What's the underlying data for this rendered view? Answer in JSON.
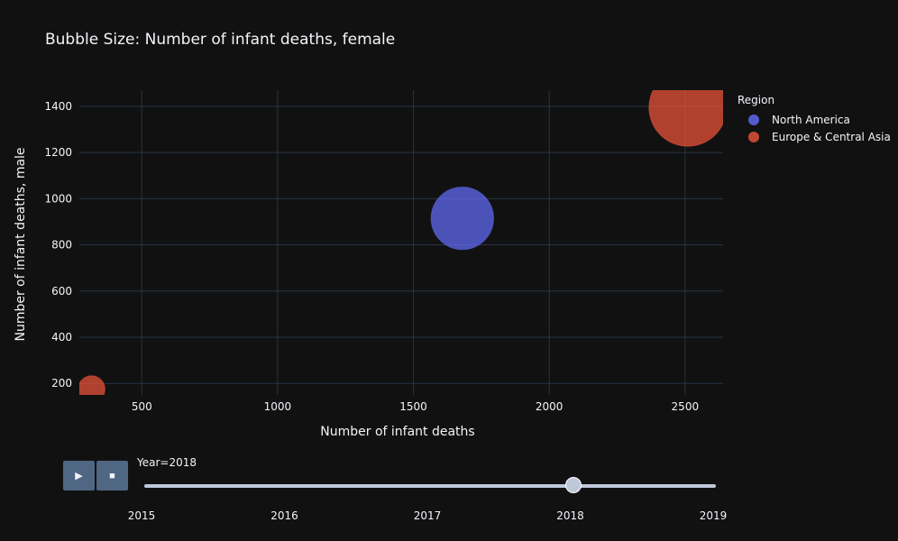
{
  "chart_data": {
    "type": "scatter",
    "title": "Bubble Size: Number of infant deaths, female",
    "xlabel": "Number of infant deaths",
    "ylabel": "Number of infant deaths, male",
    "xlim": [
      270,
      2640
    ],
    "ylim": [
      150,
      1470
    ],
    "xticks": [
      500,
      1000,
      1500,
      2000,
      2500
    ],
    "yticks": [
      200,
      400,
      600,
      800,
      1000,
      1200,
      1400
    ],
    "grid": true,
    "legend": {
      "title": "Region",
      "placement": "right",
      "entries": [
        {
          "name": "North America",
          "color": "#636efa"
        },
        {
          "name": "Europe & Central Asia",
          "color": "#ef553b"
        }
      ]
    },
    "series": [
      {
        "name": "North America",
        "color": "#636efa",
        "points": [
          {
            "x": 1680,
            "y": 915,
            "size": 760
          }
        ]
      },
      {
        "name": "Europe & Central Asia",
        "color": "#ef553b",
        "points": [
          {
            "x": 315,
            "y": 175,
            "size": 140
          },
          {
            "x": 2510,
            "y": 1395,
            "size": 1170
          }
        ]
      }
    ]
  },
  "slider": {
    "current_label": "Year=2018",
    "steps": [
      "2015",
      "2016",
      "2017",
      "2018",
      "2019"
    ],
    "active_index": 3
  },
  "controls": {
    "play_icon": "play-icon",
    "stop_icon": "stop-icon"
  }
}
